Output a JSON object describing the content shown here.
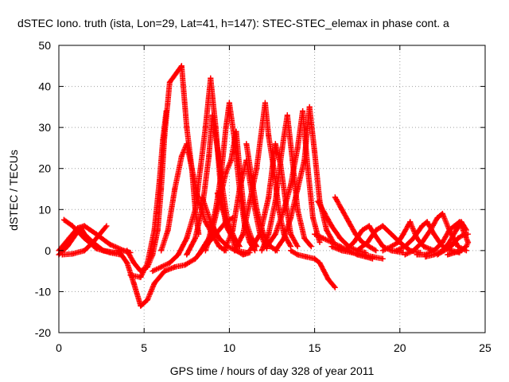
{
  "chart_data": {
    "type": "scatter",
    "title": "dSTEC Iono. truth (ista, Lon=29, Lat=41, h=147): STEC-STEC_elemax in phase cont. a",
    "xlabel": "GPS time / hours of day 328 of year 2011",
    "ylabel": "dSTEC  / TECUs",
    "xlim": [
      0,
      25
    ],
    "ylim": [
      -20,
      50
    ],
    "xticks": [
      0,
      5,
      10,
      15,
      20,
      25
    ],
    "yticks": [
      -20,
      -10,
      0,
      10,
      20,
      30,
      40,
      50
    ],
    "grid": true,
    "marker": "plus",
    "color": "#ff0000",
    "series": [
      {
        "points": [
          [
            0.2,
            -1
          ],
          [
            0.8,
            -0.8
          ],
          [
            1.5,
            0
          ],
          [
            2.0,
            2
          ],
          [
            2.5,
            4.5
          ],
          [
            2.8,
            6
          ]
        ]
      },
      {
        "points": [
          [
            0.3,
            7.5
          ],
          [
            0.8,
            6
          ],
          [
            1.5,
            3
          ],
          [
            2.2,
            0.5
          ],
          [
            3.0,
            -0.5
          ],
          [
            3.6,
            -1
          ]
        ]
      },
      {
        "points": [
          [
            0,
            -1
          ],
          [
            0.5,
            1
          ],
          [
            1.0,
            4
          ],
          [
            1.3,
            5.5
          ],
          [
            1.5,
            4
          ],
          [
            2.0,
            2
          ],
          [
            2.6,
            0
          ],
          [
            3.3,
            -0.5
          ]
        ]
      },
      {
        "points": [
          [
            0,
            0
          ],
          [
            0.6,
            3
          ],
          [
            1.1,
            5.5
          ],
          [
            1.5,
            6
          ],
          [
            2.2,
            4
          ],
          [
            3.0,
            1.5
          ],
          [
            3.8,
            0
          ],
          [
            4.2,
            -0.5
          ]
        ]
      },
      {
        "points": [
          [
            3.5,
            0
          ],
          [
            4.0,
            -3
          ],
          [
            4.4,
            -8
          ],
          [
            4.8,
            -13.5
          ],
          [
            5.2,
            -12
          ],
          [
            5.6,
            -8
          ],
          [
            6.2,
            -5
          ],
          [
            6.8,
            -4
          ],
          [
            7.4,
            -3.5
          ],
          [
            8.0,
            -2
          ],
          [
            8.6,
            1
          ],
          [
            9.2,
            4
          ],
          [
            9.8,
            7
          ],
          [
            10.2,
            8
          ]
        ]
      },
      {
        "points": [
          [
            4.0,
            0
          ],
          [
            4.4,
            -3
          ],
          [
            4.8,
            -5
          ],
          [
            5.2,
            -4
          ],
          [
            5.5,
            -1
          ],
          [
            5.8,
            5
          ],
          [
            6.0,
            15
          ],
          [
            6.2,
            28
          ],
          [
            6.5,
            41
          ],
          [
            7.2,
            45
          ],
          [
            7.5,
            30
          ],
          [
            7.8,
            20
          ],
          [
            8.0,
            10
          ],
          [
            8.2,
            4
          ]
        ]
      },
      {
        "points": [
          [
            4.2,
            -6
          ],
          [
            4.8,
            -6.5
          ],
          [
            5.2,
            -3
          ],
          [
            5.6,
            5
          ],
          [
            5.9,
            17
          ],
          [
            6.1,
            27
          ],
          [
            6.3,
            34
          ]
        ]
      },
      {
        "points": [
          [
            5.5,
            -5
          ],
          [
            6.0,
            -4
          ],
          [
            6.5,
            -3
          ],
          [
            7.0,
            -1
          ],
          [
            7.5,
            3
          ],
          [
            8.0,
            10
          ],
          [
            8.3,
            20
          ],
          [
            8.6,
            30
          ],
          [
            8.9,
            42
          ],
          [
            9.2,
            30
          ],
          [
            9.5,
            15
          ],
          [
            9.8,
            6
          ],
          [
            10.2,
            3
          ]
        ]
      },
      {
        "points": [
          [
            6.0,
            0
          ],
          [
            6.4,
            5
          ],
          [
            6.8,
            15
          ],
          [
            7.2,
            23
          ],
          [
            7.5,
            26
          ],
          [
            7.8,
            20
          ],
          [
            8.2,
            12
          ],
          [
            8.6,
            7
          ],
          [
            9.0,
            4
          ],
          [
            9.4,
            1
          ],
          [
            9.8,
            0
          ]
        ]
      },
      {
        "points": [
          [
            7.5,
            -1
          ],
          [
            8.0,
            3
          ],
          [
            8.4,
            10
          ],
          [
            8.8,
            23
          ],
          [
            9.0,
            33
          ],
          [
            9.3,
            25
          ],
          [
            9.6,
            15
          ],
          [
            9.9,
            7
          ],
          [
            10.3,
            3
          ],
          [
            10.6,
            1
          ]
        ]
      },
      {
        "points": [
          [
            8.2,
            -1
          ],
          [
            8.8,
            3
          ],
          [
            9.2,
            10
          ],
          [
            9.5,
            18
          ],
          [
            9.8,
            30
          ],
          [
            10.0,
            36
          ],
          [
            10.3,
            27
          ],
          [
            10.6,
            15
          ],
          [
            10.9,
            6
          ],
          [
            11.2,
            2
          ],
          [
            11.5,
            0
          ]
        ]
      },
      {
        "points": [
          [
            8.6,
            0
          ],
          [
            9.0,
            5
          ],
          [
            9.4,
            12
          ],
          [
            9.8,
            19
          ],
          [
            10.1,
            22
          ],
          [
            10.4,
            29
          ],
          [
            10.6,
            20
          ],
          [
            10.9,
            8
          ],
          [
            11.3,
            3
          ],
          [
            11.6,
            1
          ]
        ]
      },
      {
        "points": [
          [
            9.3,
            14
          ],
          [
            9.6,
            10
          ],
          [
            10.0,
            5
          ],
          [
            10.4,
            0
          ],
          [
            10.8,
            -1
          ],
          [
            11.2,
            -0.5
          ]
        ]
      },
      {
        "points": [
          [
            8.4,
            13
          ],
          [
            8.9,
            7
          ],
          [
            9.4,
            3
          ],
          [
            9.9,
            1
          ],
          [
            10.4,
            0
          ],
          [
            11.0,
            -0.5
          ]
        ]
      },
      {
        "points": [
          [
            9.7,
            0
          ],
          [
            10.2,
            5
          ],
          [
            10.6,
            15
          ],
          [
            11.0,
            22
          ],
          [
            11.4,
            12
          ],
          [
            11.8,
            4
          ],
          [
            12.2,
            0.5
          ]
        ]
      },
      {
        "points": [
          [
            10.3,
            0
          ],
          [
            10.8,
            4
          ],
          [
            11.2,
            12
          ],
          [
            11.6,
            20
          ],
          [
            12.1,
            36
          ],
          [
            12.3,
            28
          ],
          [
            12.6,
            20
          ],
          [
            12.9,
            10
          ],
          [
            13.2,
            4
          ],
          [
            13.6,
            1
          ]
        ]
      },
      {
        "points": [
          [
            11.0,
            26
          ],
          [
            11.3,
            18
          ],
          [
            11.6,
            10
          ],
          [
            12.0,
            4
          ],
          [
            12.4,
            1
          ],
          [
            12.8,
            0
          ]
        ]
      },
      {
        "points": [
          [
            11.2,
            0
          ],
          [
            11.8,
            4
          ],
          [
            12.3,
            13
          ],
          [
            12.7,
            26
          ],
          [
            13.0,
            21
          ],
          [
            13.3,
            12
          ],
          [
            13.6,
            4
          ],
          [
            14.0,
            1
          ]
        ]
      },
      {
        "points": [
          [
            11.9,
            0
          ],
          [
            12.3,
            4
          ],
          [
            12.7,
            12
          ],
          [
            13.1,
            25
          ],
          [
            13.4,
            33
          ],
          [
            13.7,
            22
          ],
          [
            14.0,
            10
          ],
          [
            14.4,
            3
          ],
          [
            14.8,
            1
          ]
        ]
      },
      {
        "points": [
          [
            12.2,
            1
          ],
          [
            12.7,
            4
          ],
          [
            13.2,
            10
          ],
          [
            13.6,
            16
          ],
          [
            14.0,
            25
          ],
          [
            14.3,
            34
          ],
          [
            14.6,
            20
          ],
          [
            14.9,
            8
          ],
          [
            15.3,
            2
          ]
        ]
      },
      {
        "points": [
          [
            12.7,
            0
          ],
          [
            13.2,
            3
          ],
          [
            13.6,
            8
          ],
          [
            14.0,
            15
          ],
          [
            14.4,
            22
          ],
          [
            14.7,
            35
          ],
          [
            15.0,
            24
          ],
          [
            15.3,
            12
          ],
          [
            15.7,
            5
          ],
          [
            16.1,
            2
          ]
        ]
      },
      {
        "points": [
          [
            13.6,
            0
          ],
          [
            14.0,
            -1
          ],
          [
            14.5,
            -1.5
          ],
          [
            15.0,
            -2
          ],
          [
            15.3,
            -3
          ],
          [
            15.8,
            -7
          ],
          [
            16.2,
            -9
          ]
        ]
      },
      {
        "points": [
          [
            15.0,
            4
          ],
          [
            15.5,
            3
          ],
          [
            16.0,
            2
          ],
          [
            16.5,
            1
          ],
          [
            17.0,
            0
          ],
          [
            17.5,
            -1
          ],
          [
            18.0,
            -1.5
          ],
          [
            18.4,
            -2
          ]
        ]
      },
      {
        "points": [
          [
            15.2,
            12
          ],
          [
            15.6,
            9
          ],
          [
            16.0,
            6
          ],
          [
            16.5,
            3
          ],
          [
            17.0,
            1
          ],
          [
            17.5,
            0
          ],
          [
            18.0,
            -0.5
          ]
        ]
      },
      {
        "points": [
          [
            16.0,
            1
          ],
          [
            16.6,
            0
          ],
          [
            17.2,
            -0.5
          ],
          [
            17.8,
            -1
          ],
          [
            18.4,
            -1.5
          ],
          [
            19.0,
            -2
          ]
        ]
      },
      {
        "points": [
          [
            16.2,
            13
          ],
          [
            16.6,
            10
          ],
          [
            17.0,
            7
          ],
          [
            17.4,
            4
          ],
          [
            17.8,
            2
          ],
          [
            18.2,
            1
          ],
          [
            18.6,
            0
          ]
        ]
      },
      {
        "points": [
          [
            16.8,
            0
          ],
          [
            17.3,
            2
          ],
          [
            17.8,
            5
          ],
          [
            18.2,
            6
          ],
          [
            18.5,
            4
          ],
          [
            19.0,
            1
          ],
          [
            19.5,
            0
          ],
          [
            20.2,
            -0.5
          ]
        ]
      },
      {
        "points": [
          [
            17.5,
            0
          ],
          [
            18.1,
            2
          ],
          [
            18.6,
            5
          ],
          [
            19.0,
            6
          ],
          [
            19.5,
            4
          ],
          [
            20.0,
            2
          ],
          [
            20.6,
            0
          ],
          [
            21.2,
            -0.5
          ]
        ]
      },
      {
        "points": [
          [
            19.0,
            0
          ],
          [
            19.5,
            1
          ],
          [
            19.9,
            2
          ],
          [
            20.2,
            4
          ],
          [
            20.6,
            7
          ],
          [
            21.0,
            3
          ],
          [
            21.4,
            1
          ],
          [
            22.0,
            0
          ]
        ]
      },
      {
        "points": [
          [
            19.8,
            0
          ],
          [
            20.3,
            1
          ],
          [
            20.8,
            3
          ],
          [
            21.3,
            6
          ],
          [
            21.6,
            7
          ],
          [
            22.0,
            4
          ],
          [
            22.5,
            1
          ],
          [
            23.0,
            0
          ],
          [
            23.5,
            -0.5
          ]
        ]
      },
      {
        "points": [
          [
            20.3,
            -1
          ],
          [
            20.8,
            0
          ],
          [
            21.3,
            2
          ],
          [
            21.8,
            5
          ],
          [
            22.2,
            8
          ],
          [
            22.5,
            9
          ],
          [
            22.9,
            5
          ],
          [
            23.4,
            1
          ],
          [
            23.9,
            0
          ]
        ]
      },
      {
        "points": [
          [
            21.0,
            -1
          ],
          [
            21.5,
            -1
          ],
          [
            22.0,
            0
          ],
          [
            22.5,
            2
          ],
          [
            22.9,
            5
          ],
          [
            23.2,
            6
          ],
          [
            23.5,
            7
          ],
          [
            23.8,
            4
          ],
          [
            24.0,
            2
          ]
        ]
      },
      {
        "points": [
          [
            21.5,
            -1.5
          ],
          [
            22.0,
            -1
          ],
          [
            22.5,
            0
          ],
          [
            22.9,
            2
          ],
          [
            23.3,
            5
          ],
          [
            23.6,
            7
          ],
          [
            23.9,
            5
          ]
        ]
      },
      {
        "points": [
          [
            22.2,
            -1
          ],
          [
            22.6,
            0
          ],
          [
            23.0,
            1
          ],
          [
            23.4,
            3
          ],
          [
            23.8,
            4
          ],
          [
            24.0,
            4
          ]
        ]
      },
      {
        "points": [
          [
            22.8,
            -1
          ],
          [
            23.2,
            -0.5
          ],
          [
            23.6,
            0
          ],
          [
            23.9,
            1
          ],
          [
            24.0,
            2
          ]
        ]
      }
    ]
  }
}
